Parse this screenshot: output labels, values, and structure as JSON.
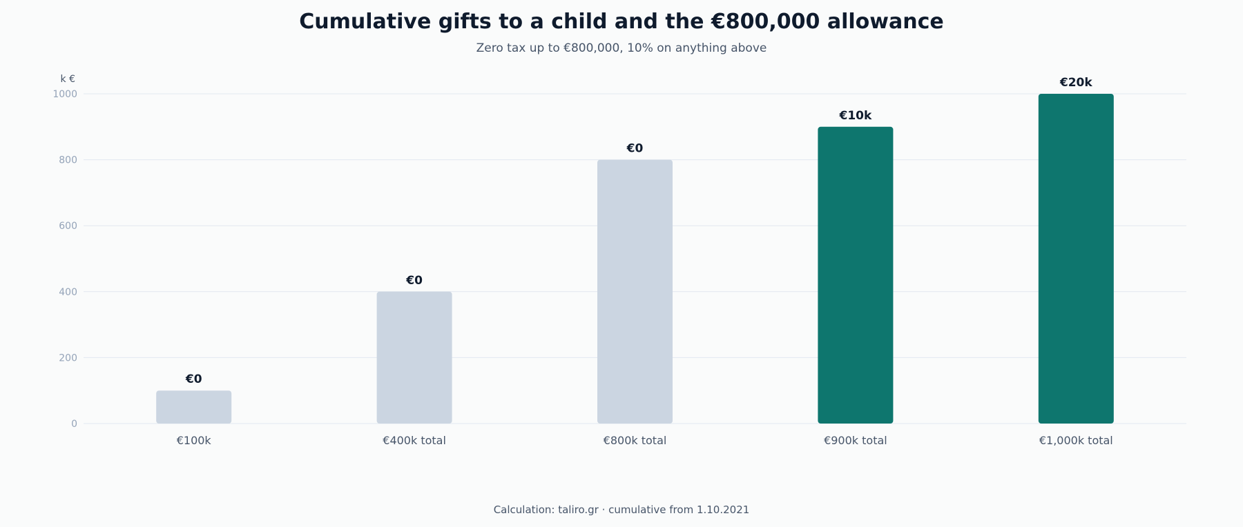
{
  "chart_data": {
    "type": "bar",
    "title": "Cumulative gifts to a child and the €800,000 allowance",
    "subtitle": "Zero tax up to €800,000, 10% on anything above",
    "ylabel": "k €",
    "xlabel": "",
    "ylim": [
      0,
      1000
    ],
    "yticks": [
      0,
      200,
      400,
      600,
      800,
      1000
    ],
    "grid": true,
    "categories": [
      "€100k",
      "€400k total",
      "€800k total",
      "€900k total",
      "€1,000k total"
    ],
    "values": [
      100,
      400,
      800,
      900,
      1000
    ],
    "data_labels": [
      "€0",
      "€0",
      "€0",
      "€10k",
      "€20k"
    ],
    "taxed": [
      false,
      false,
      false,
      true,
      true
    ]
  },
  "colors": {
    "untaxed_bar": "#cbd5e1",
    "taxed_bar": "#0e766e",
    "grid": "#e2e8f0",
    "tick_label": "#94a3b8",
    "category_label": "#475569",
    "data_label": "#0f1b2d"
  },
  "footer": {
    "note": "Calculation: taliro.gr · cumulative from 1.10.2021"
  }
}
